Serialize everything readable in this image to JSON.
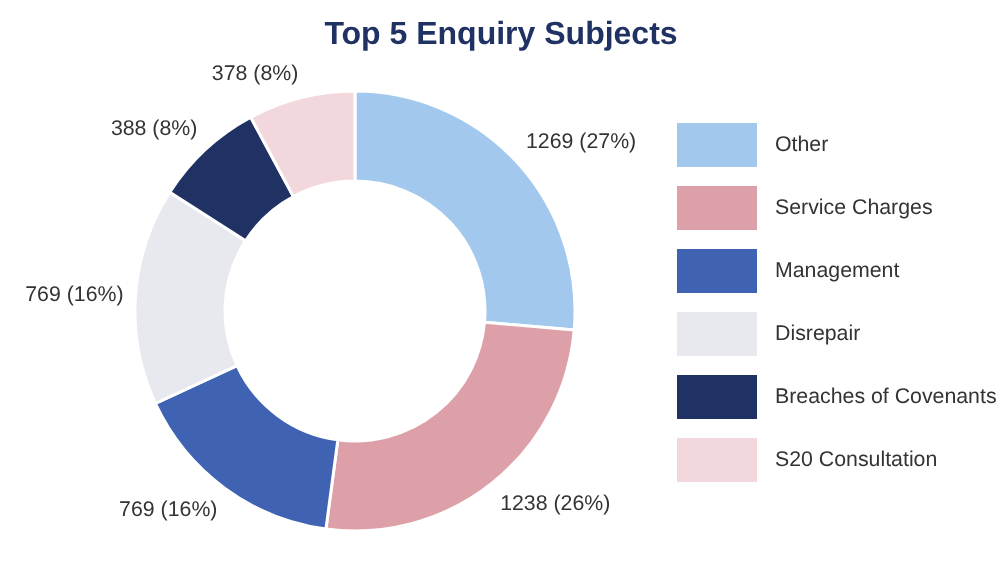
{
  "chart_data": {
    "type": "donut",
    "title": "Top 5 Enquiry Subjects",
    "categories": [
      "Other",
      "Service Charges",
      "Management",
      "Disrepair",
      "Breaches of Covenants",
      "S20 Consultation"
    ],
    "values": [
      1269,
      1238,
      769,
      769,
      388,
      378
    ],
    "value_labels": [
      "1269 (27%)",
      "1238 (26%)",
      "769 (16%)",
      "769 (16%)",
      "388 (8%)",
      "378 (8%)"
    ],
    "colors": [
      "#a3c8ee",
      "#dea0a8",
      "#4062b3",
      "#e8e8ef",
      "#1f3263",
      "#f2d8dc"
    ],
    "legend": "right"
  }
}
